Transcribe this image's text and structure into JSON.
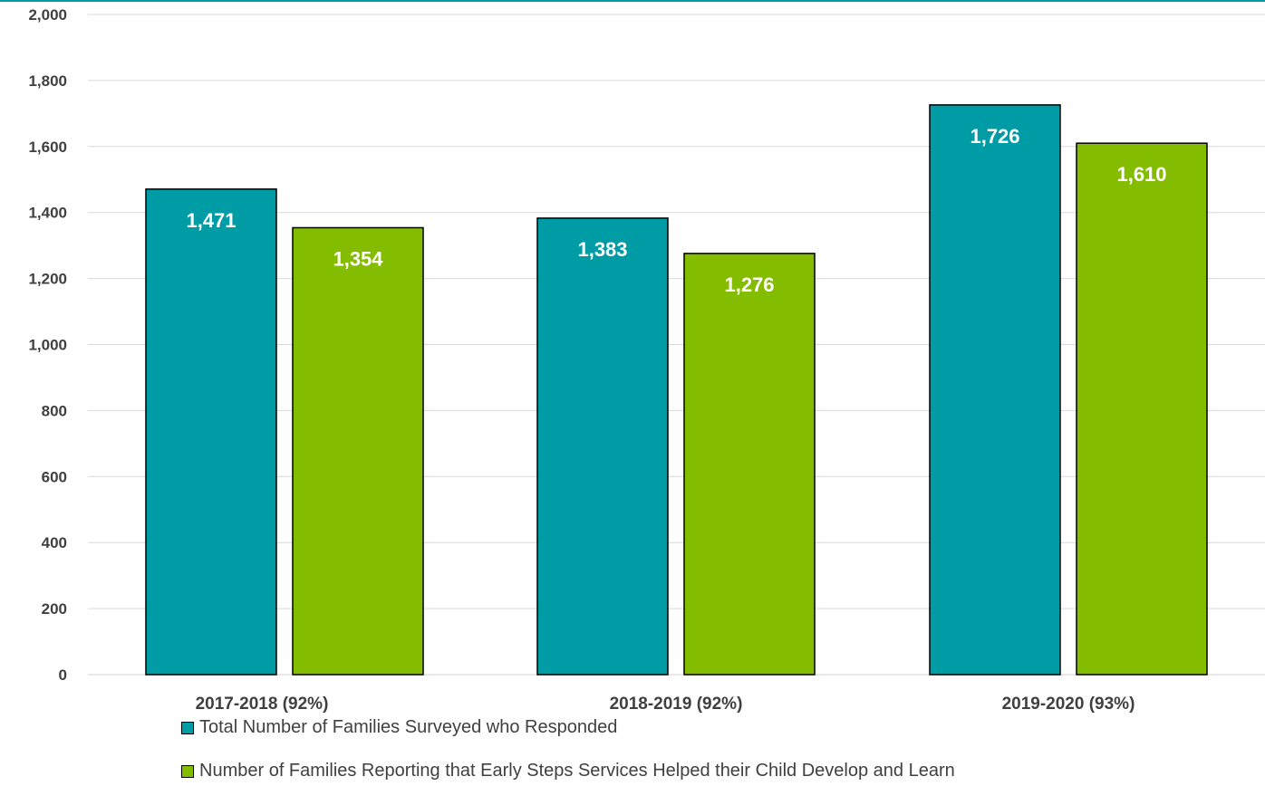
{
  "chart_data": {
    "type": "bar",
    "title": "",
    "xlabel": "",
    "ylabel": "",
    "categories": [
      "2017-2018 (92%)",
      "2018-2019 (92%)",
      "2019-2020 (93%)"
    ],
    "series": [
      {
        "name": "Total Number of Families Surveyed who Responded",
        "color": "#009ca6",
        "values": [
          1471,
          1383,
          1726
        ],
        "labels": [
          "1,471",
          "1,383",
          "1,726"
        ]
      },
      {
        "name": "Number of Families Reporting that Early Steps Services Helped their Child Develop and Learn",
        "color": "#84bd00",
        "values": [
          1354,
          1276,
          1610
        ],
        "labels": [
          "1,354",
          "1,276",
          "1,610"
        ]
      }
    ],
    "ylim": [
      0,
      2000
    ],
    "yticks": [
      0,
      200,
      400,
      600,
      800,
      1000,
      1200,
      1400,
      1600,
      1800,
      2000
    ],
    "ytick_labels": [
      "0",
      "200",
      "400",
      "600",
      "800",
      "1,000",
      "1,200",
      "1,400",
      "1,600",
      "1,800",
      "2,000"
    ],
    "grid": true,
    "legend_position": "bottom",
    "accent_line_color": "#009ca6"
  }
}
